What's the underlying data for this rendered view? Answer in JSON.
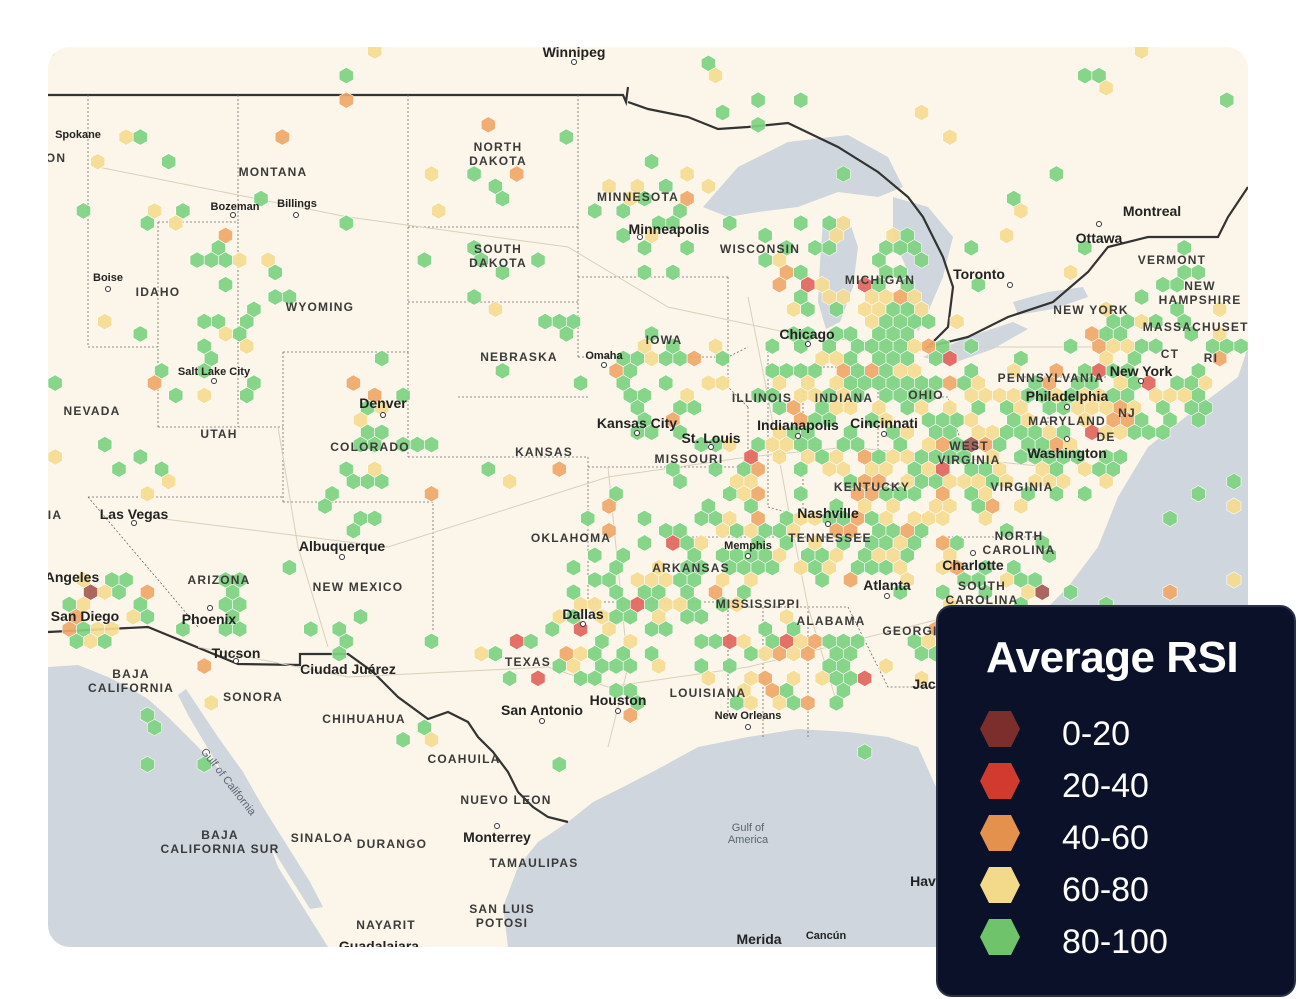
{
  "map": {
    "labels": {
      "states": [
        {
          "id": "montana",
          "text": "MONTANA"
        },
        {
          "id": "idaho",
          "text": "IDAHO"
        },
        {
          "id": "wyoming",
          "text": "WYOMING"
        },
        {
          "id": "nevada",
          "text": "NEVADA"
        },
        {
          "id": "utah",
          "text": "UTAH"
        },
        {
          "id": "colorado",
          "text": "COLORADO"
        },
        {
          "id": "arizona",
          "text": "ARIZONA"
        },
        {
          "id": "new-mexico",
          "text": "NEW MEXICO"
        },
        {
          "id": "north-dakota",
          "text": "NORTH DAKOTA"
        },
        {
          "id": "south-dakota",
          "text": "SOUTH DAKOTA"
        },
        {
          "id": "nebraska",
          "text": "NEBRASKA"
        },
        {
          "id": "kansas",
          "text": "KANSAS"
        },
        {
          "id": "oklahoma",
          "text": "OKLAHOMA"
        },
        {
          "id": "texas",
          "text": "TEXAS"
        },
        {
          "id": "minnesota",
          "text": "MINNESOTA"
        },
        {
          "id": "iowa",
          "text": "IOWA"
        },
        {
          "id": "missouri",
          "text": "MISSOURI"
        },
        {
          "id": "arkansas",
          "text": "ARKANSAS"
        },
        {
          "id": "louisiana",
          "text": "LOUISIANA"
        },
        {
          "id": "wisconsin",
          "text": "WISCONSIN"
        },
        {
          "id": "michigan",
          "text": "MICHIGAN"
        },
        {
          "id": "illinois",
          "text": "ILLINOIS"
        },
        {
          "id": "indiana",
          "text": "INDIANA"
        },
        {
          "id": "ohio",
          "text": "OHIO"
        },
        {
          "id": "kentucky",
          "text": "KENTUCKY"
        },
        {
          "id": "tennessee",
          "text": "TENNESSEE"
        },
        {
          "id": "mississippi",
          "text": "MISSISSIPPI"
        },
        {
          "id": "alabama",
          "text": "ALABAMA"
        },
        {
          "id": "georgia",
          "text": "GEORGI"
        },
        {
          "id": "pennsylvania",
          "text": "PENNSYLVANIA"
        },
        {
          "id": "new-york",
          "text": "NEW YORK"
        },
        {
          "id": "west-virginia",
          "text": "WEST VIRGINIA"
        },
        {
          "id": "virginia",
          "text": "VIRGINIA"
        },
        {
          "id": "maryland",
          "text": "MARYLAND"
        },
        {
          "id": "de",
          "text": "DE"
        },
        {
          "id": "nj",
          "text": "NJ"
        },
        {
          "id": "ct",
          "text": "CT"
        },
        {
          "id": "ri",
          "text": "RI"
        },
        {
          "id": "vermont",
          "text": "VERMONT"
        },
        {
          "id": "new-hampshire",
          "text": "NEW HAMPSHIRE"
        },
        {
          "id": "massachusetts",
          "text": "MASSACHUSETT"
        },
        {
          "id": "north-carolina",
          "text": "NORTH CAROLINA"
        },
        {
          "id": "south-carolina",
          "text": "SOUTH CAROLINA"
        },
        {
          "id": "baja-california",
          "text": "BAJA CALIFORNIA"
        },
        {
          "id": "sonora",
          "text": "SONORA"
        },
        {
          "id": "chihuahua",
          "text": "CHIHUAHUA"
        },
        {
          "id": "coahuila",
          "text": "COAHUILA"
        },
        {
          "id": "nuevo-leon",
          "text": "NUEVO LEON"
        },
        {
          "id": "tamaulipas",
          "text": "TAMAULIPAS"
        },
        {
          "id": "baja-california-sur",
          "text": "BAJA CALIFORNIA SUR"
        },
        {
          "id": "sinaloa",
          "text": "SINALOA"
        },
        {
          "id": "durango",
          "text": "DURANGO"
        },
        {
          "id": "nayarit",
          "text": "NAYARIT"
        },
        {
          "id": "san-luis-potosi",
          "text": "SAN LUIS POTOSI"
        },
        {
          "id": "ia-edge",
          "text": "IA"
        },
        {
          "id": "on-edge",
          "text": "ON"
        }
      ],
      "cities": [
        {
          "id": "winnipeg",
          "text": "Winnipeg"
        },
        {
          "id": "spokane",
          "text": "Spokane"
        },
        {
          "id": "bozeman",
          "text": "Bozeman"
        },
        {
          "id": "billings",
          "text": "Billings"
        },
        {
          "id": "boise",
          "text": "Boise"
        },
        {
          "id": "salt-lake-city",
          "text": "Salt Lake City"
        },
        {
          "id": "denver",
          "text": "Denver"
        },
        {
          "id": "las-vegas",
          "text": "Las Vegas"
        },
        {
          "id": "los-angeles",
          "text": "Angeles"
        },
        {
          "id": "san-diego",
          "text": "San Diego"
        },
        {
          "id": "phoenix",
          "text": "Phoenix"
        },
        {
          "id": "tucson",
          "text": "Tucson"
        },
        {
          "id": "albuquerque",
          "text": "Albuquerque"
        },
        {
          "id": "ciudad-juarez",
          "text": "Ciudad Juárez"
        },
        {
          "id": "minneapolis",
          "text": "Minneapolis"
        },
        {
          "id": "omaha",
          "text": "Omaha"
        },
        {
          "id": "kansas-city",
          "text": "Kansas City"
        },
        {
          "id": "st-louis",
          "text": "St. Louis"
        },
        {
          "id": "chicago",
          "text": "Chicago"
        },
        {
          "id": "indianapolis",
          "text": "Indianapolis"
        },
        {
          "id": "cincinnati",
          "text": "Cincinnati"
        },
        {
          "id": "nashville",
          "text": "Nashville"
        },
        {
          "id": "memphis",
          "text": "Memphis"
        },
        {
          "id": "dallas",
          "text": "Dallas"
        },
        {
          "id": "houston",
          "text": "Houston"
        },
        {
          "id": "san-antonio",
          "text": "San Antonio"
        },
        {
          "id": "new-orleans",
          "text": "New Orleans"
        },
        {
          "id": "atlanta",
          "text": "Atlanta"
        },
        {
          "id": "charlotte",
          "text": "Charlotte"
        },
        {
          "id": "washington",
          "text": "Washington"
        },
        {
          "id": "philadelphia",
          "text": "Philadelphia"
        },
        {
          "id": "new-york-city",
          "text": "New York"
        },
        {
          "id": "toronto",
          "text": "Toronto"
        },
        {
          "id": "ottawa",
          "text": "Ottawa"
        },
        {
          "id": "montreal",
          "text": "Montreal"
        },
        {
          "id": "monterrey",
          "text": "Monterrey"
        },
        {
          "id": "merida",
          "text": "Merida"
        },
        {
          "id": "cancun",
          "text": "Cancún"
        },
        {
          "id": "guadalajara",
          "text": "Guadalajara"
        },
        {
          "id": "jacksonville",
          "text": "Jac"
        },
        {
          "id": "havana",
          "text": "Hav"
        }
      ],
      "water": [
        {
          "id": "gulf-of-america",
          "text": "Gulf of America"
        },
        {
          "id": "gulf-of-california",
          "text": "Gulf of California"
        }
      ]
    }
  },
  "legend": {
    "title": "Average RSI",
    "items": [
      {
        "label": "0-20",
        "color": "#7b2e2c"
      },
      {
        "label": "20-40",
        "color": "#d03a2f"
      },
      {
        "label": "40-60",
        "color": "#e3914d"
      },
      {
        "label": "60-80",
        "color": "#f3d98a"
      },
      {
        "label": "80-100",
        "color": "#6fc36a"
      }
    ]
  },
  "colors": {
    "land": "#fbf6e9",
    "water": "#cfd6dd",
    "border": "#333333",
    "hex_green": "#7ed381",
    "hex_yellow": "#f6dc92",
    "hex_orange": "#f0a86a",
    "hex_red": "#e2665c",
    "hex_dark": "#a55b53"
  }
}
